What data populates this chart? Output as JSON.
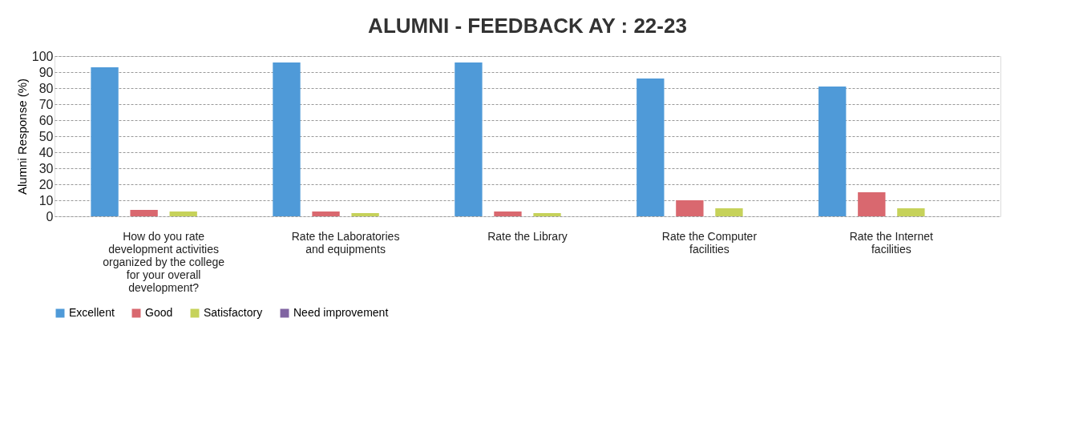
{
  "chart_data": {
    "type": "bar",
    "title": "ALUMNI - FEEDBACK AY : 22-23",
    "ylabel": "Alumni Response (%)",
    "categories": [
      "How do you rate development activities organized by the college for your overall development?",
      "Rate the Laboratories and equipments",
      "Rate the Library",
      "Rate the Computer facilities",
      "Rate the Internet facilities"
    ],
    "series": [
      {
        "name": "Excellent",
        "color": "#4f9ad8",
        "values": [
          93,
          96,
          96,
          86,
          81
        ]
      },
      {
        "name": "Good",
        "color": "#d9686f",
        "values": [
          4,
          3,
          3,
          10,
          15
        ]
      },
      {
        "name": "Satisfactory",
        "color": "#c6d25a",
        "values": [
          3,
          2,
          2,
          5,
          5
        ]
      },
      {
        "name": "Need improvement",
        "color": "#8064a2",
        "values": [
          0,
          0,
          0,
          0,
          0
        ]
      }
    ],
    "ylim": [
      0,
      100
    ],
    "yticks": [
      0,
      10,
      20,
      30,
      40,
      50,
      60,
      70,
      80,
      90,
      100
    ],
    "grid": "y",
    "legend": "bottom"
  }
}
